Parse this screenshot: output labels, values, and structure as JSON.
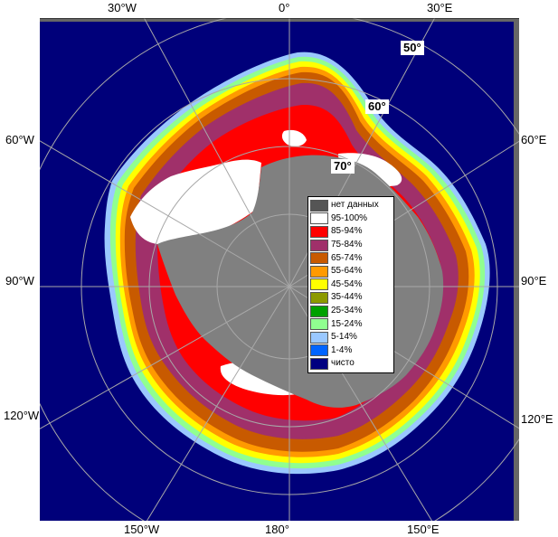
{
  "labels": {
    "top": [
      "30°W",
      "0°",
      "30°E"
    ],
    "left": [
      "60°W",
      "90°W",
      "120°W"
    ],
    "right": [
      "60°E",
      "90°E",
      "120°E"
    ],
    "bottom": [
      "150°W",
      "180°",
      "150°E"
    ],
    "latitudes": [
      "50°",
      "60°",
      "70°"
    ]
  },
  "legend": [
    {
      "label": "нет данных",
      "color": "#555555"
    },
    {
      "label": "95-100%",
      "color": "#ffffff"
    },
    {
      "label": "85-94%",
      "color": "#ff0000"
    },
    {
      "label": "75-84%",
      "color": "#a0306a"
    },
    {
      "label": "65-74%",
      "color": "#c85a00"
    },
    {
      "label": "55-64%",
      "color": "#ff9a00"
    },
    {
      "label": "45-54%",
      "color": "#ffff00"
    },
    {
      "label": "35-44%",
      "color": "#8c9a00"
    },
    {
      "label": "25-34%",
      "color": "#00a000"
    },
    {
      "label": "15-24%",
      "color": "#90ff90"
    },
    {
      "label": "5-14%",
      "color": "#9ac8ff"
    },
    {
      "label": "1-4%",
      "color": "#0064ff"
    },
    {
      "label": "чисто",
      "color": "#000080"
    }
  ],
  "colors": {
    "ocean": "#000080",
    "land": "#808080",
    "grid": "#a0a0a0"
  }
}
